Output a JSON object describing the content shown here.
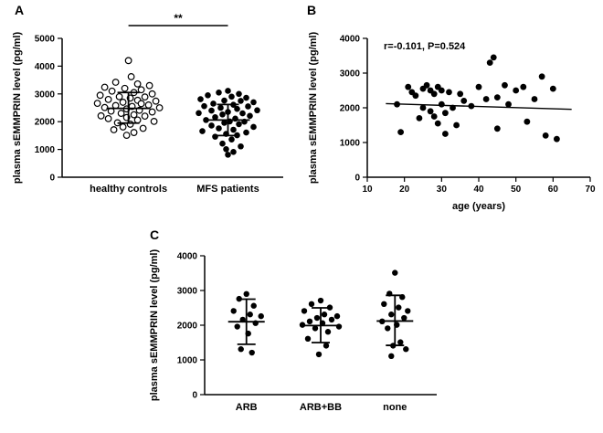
{
  "chart_data": [
    {
      "id": "panel-a",
      "type": "scatter",
      "subtype": "column-scatter",
      "panel_label": "A",
      "ylabel": "plasma sEMMPRIN level (pg/ml)",
      "ylim": [
        0,
        5000
      ],
      "yticks": [
        0,
        1000,
        2000,
        3000,
        4000,
        5000
      ],
      "categories": [
        "healthy controls",
        "MFS patients"
      ],
      "significance": {
        "label": "**",
        "between": [
          "healthy controls",
          "MFS patients"
        ]
      },
      "series": [
        {
          "name": "healthy controls",
          "marker": "open-circle",
          "mean": 2480,
          "sd_low": 1950,
          "sd_high": 3050,
          "points": [
            [
              0,
              4200
            ],
            [
              3,
              3620
            ],
            [
              -14,
              3420
            ],
            [
              10,
              3360
            ],
            [
              23,
              3300
            ],
            [
              -26,
              3240
            ],
            [
              -4,
              3200
            ],
            [
              14,
              3150
            ],
            [
              -18,
              3100
            ],
            [
              6,
              3050
            ],
            [
              26,
              3000
            ],
            [
              -31,
              2950
            ],
            [
              -10,
              2900
            ],
            [
              18,
              2890
            ],
            [
              2,
              2850
            ],
            [
              -22,
              2800
            ],
            [
              10,
              2770
            ],
            [
              30,
              2740
            ],
            [
              -6,
              2700
            ],
            [
              -34,
              2660
            ],
            [
              14,
              2650
            ],
            [
              22,
              2600
            ],
            [
              -14,
              2580
            ],
            [
              4,
              2550
            ],
            [
              -26,
              2510
            ],
            [
              34,
              2500
            ],
            [
              -2,
              2460
            ],
            [
              12,
              2410
            ],
            [
              -19,
              2380
            ],
            [
              26,
              2350
            ],
            [
              -8,
              2300
            ],
            [
              6,
              2250
            ],
            [
              -30,
              2210
            ],
            [
              18,
              2200
            ],
            [
              -2,
              2150
            ],
            [
              -22,
              2110
            ],
            [
              10,
              2060
            ],
            [
              28,
              2010
            ],
            [
              -12,
              1960
            ],
            [
              2,
              1910
            ],
            [
              -6,
              1810
            ],
            [
              16,
              1760
            ],
            [
              -16,
              1710
            ],
            [
              6,
              1610
            ],
            [
              -2,
              1510
            ]
          ]
        },
        {
          "name": "MFS patients",
          "marker": "filled-circle",
          "mean": 2060,
          "sd_low": 1500,
          "sd_high": 2620,
          "points": [
            [
              0,
              3110
            ],
            [
              -10,
              3050
            ],
            [
              12,
              3000
            ],
            [
              -22,
              2950
            ],
            [
              4,
              2900
            ],
            [
              20,
              2860
            ],
            [
              -30,
              2810
            ],
            [
              -4,
              2760
            ],
            [
              14,
              2750
            ],
            [
              28,
              2700
            ],
            [
              -16,
              2650
            ],
            [
              6,
              2610
            ],
            [
              -26,
              2560
            ],
            [
              22,
              2550
            ],
            [
              -8,
              2500
            ],
            [
              10,
              2460
            ],
            [
              32,
              2410
            ],
            [
              -18,
              2400
            ],
            [
              0,
              2350
            ],
            [
              -32,
              2310
            ],
            [
              16,
              2300
            ],
            [
              -6,
              2260
            ],
            [
              24,
              2210
            ],
            [
              -14,
              2160
            ],
            [
              8,
              2110
            ],
            [
              -24,
              2060
            ],
            [
              2,
              2010
            ],
            [
              18,
              2000
            ],
            [
              -4,
              1960
            ],
            [
              12,
              1910
            ],
            [
              -18,
              1860
            ],
            [
              28,
              1810
            ],
            [
              -10,
              1760
            ],
            [
              6,
              1710
            ],
            [
              -28,
              1660
            ],
            [
              20,
              1610
            ],
            [
              -2,
              1560
            ],
            [
              10,
              1510
            ],
            [
              -14,
              1460
            ],
            [
              4,
              1360
            ],
            [
              -6,
              1210
            ],
            [
              14,
              1110
            ],
            [
              -2,
              1010
            ],
            [
              6,
              910
            ],
            [
              0,
              810
            ]
          ]
        }
      ]
    },
    {
      "id": "panel-b",
      "type": "scatter",
      "panel_label": "B",
      "annotation": "r=-0.101, P=0.524",
      "r": -0.101,
      "P": 0.524,
      "xlabel": "age (years)",
      "ylabel": "plasma sEMMPRIN level (pg/ml)",
      "xlim": [
        10,
        70
      ],
      "xticks": [
        10,
        20,
        30,
        40,
        50,
        60,
        70
      ],
      "ylim": [
        0,
        4000
      ],
      "yticks": [
        0,
        1000,
        2000,
        3000,
        4000
      ],
      "marker": "filled-circle",
      "points": [
        [
          18,
          2100
        ],
        [
          19,
          1300
        ],
        [
          21,
          2600
        ],
        [
          22,
          2450
        ],
        [
          23,
          2350
        ],
        [
          24,
          1700
        ],
        [
          25,
          2550
        ],
        [
          25,
          2000
        ],
        [
          26,
          2650
        ],
        [
          27,
          2500
        ],
        [
          27,
          1900
        ],
        [
          28,
          2400
        ],
        [
          28,
          1750
        ],
        [
          29,
          2600
        ],
        [
          29,
          1550
        ],
        [
          30,
          2500
        ],
        [
          30,
          2100
        ],
        [
          31,
          1850
        ],
        [
          31,
          1250
        ],
        [
          32,
          2450
        ],
        [
          33,
          2000
        ],
        [
          34,
          1500
        ],
        [
          35,
          2400
        ],
        [
          36,
          2200
        ],
        [
          38,
          2050
        ],
        [
          40,
          2600
        ],
        [
          42,
          2250
        ],
        [
          43,
          3300
        ],
        [
          44,
          3450
        ],
        [
          45,
          2300
        ],
        [
          45,
          1400
        ],
        [
          47,
          2650
        ],
        [
          48,
          2100
        ],
        [
          50,
          2500
        ],
        [
          52,
          2600
        ],
        [
          53,
          1600
        ],
        [
          55,
          2250
        ],
        [
          57,
          2900
        ],
        [
          58,
          1200
        ],
        [
          60,
          2550
        ],
        [
          61,
          1100
        ]
      ],
      "trendline": {
        "x1": 15,
        "y1": 2120,
        "x2": 65,
        "y2": 1955
      }
    },
    {
      "id": "panel-c",
      "type": "scatter",
      "subtype": "column-scatter",
      "panel_label": "C",
      "ylabel": "plasma sEMMPRIN level (pg/ml)",
      "ylim": [
        0,
        4000
      ],
      "yticks": [
        0,
        1000,
        2000,
        3000,
        4000
      ],
      "categories": [
        "ARB",
        "ARB+BB",
        "none"
      ],
      "series": [
        {
          "name": "ARB",
          "marker": "filled-circle",
          "mean": 2100,
          "sd_low": 1450,
          "sd_high": 2750,
          "points": [
            [
              0,
              2900
            ],
            [
              -8,
              2760
            ],
            [
              8,
              2560
            ],
            [
              -14,
              2410
            ],
            [
              4,
              2310
            ],
            [
              16,
              2260
            ],
            [
              -4,
              2160
            ],
            [
              10,
              2060
            ],
            [
              -10,
              1960
            ],
            [
              2,
              1760
            ],
            [
              -6,
              1310
            ],
            [
              6,
              1210
            ]
          ]
        },
        {
          "name": "ARB+BB",
          "marker": "filled-circle",
          "mean": 1990,
          "sd_low": 1500,
          "sd_high": 2500,
          "points": [
            [
              0,
              2710
            ],
            [
              -10,
              2610
            ],
            [
              10,
              2510
            ],
            [
              -18,
              2410
            ],
            [
              4,
              2310
            ],
            [
              18,
              2260
            ],
            [
              -4,
              2210
            ],
            [
              12,
              2160
            ],
            [
              -12,
              2110
            ],
            [
              2,
              2060
            ],
            [
              -20,
              2010
            ],
            [
              20,
              1960
            ],
            [
              -6,
              1910
            ],
            [
              8,
              1810
            ],
            [
              -14,
              1610
            ],
            [
              6,
              1410
            ],
            [
              -2,
              1160
            ]
          ]
        },
        {
          "name": "none",
          "marker": "filled-circle",
          "mean": 2120,
          "sd_low": 1420,
          "sd_high": 2860,
          "points": [
            [
              0,
              3510
            ],
            [
              -6,
              2910
            ],
            [
              8,
              2810
            ],
            [
              -12,
              2610
            ],
            [
              4,
              2510
            ],
            [
              14,
              2410
            ],
            [
              -4,
              2310
            ],
            [
              10,
              2210
            ],
            [
              -14,
              2110
            ],
            [
              2,
              2010
            ],
            [
              -8,
              1910
            ],
            [
              6,
              1510
            ],
            [
              -2,
              1410
            ],
            [
              12,
              1310
            ],
            [
              -4,
              1110
            ]
          ]
        }
      ]
    }
  ]
}
